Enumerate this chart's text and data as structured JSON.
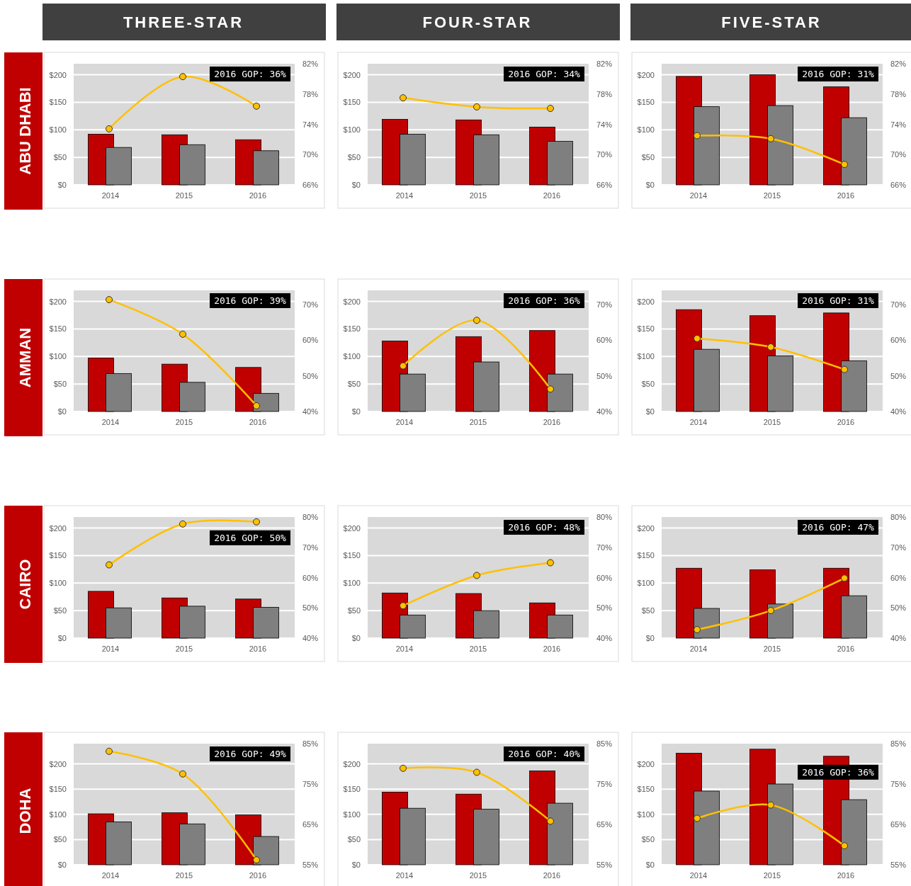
{
  "chart_data": [
    {
      "type": "bar",
      "title": "THREE-STAR",
      "ylabel": "ABU DHABI",
      "categories": [
        "2014",
        "2015",
        "2016"
      ],
      "series": [
        {
          "color": "#c00000",
          "values": [
            92,
            91,
            82
          ]
        },
        {
          "color": "#7f7f7f",
          "values": [
            68,
            73,
            62
          ]
        },
        {
          "type": "line",
          "axis": "y2",
          "color": "#ffc000",
          "values": [
            73.4,
            80.3,
            76.4
          ]
        }
      ],
      "ylim": [
        0,
        220
      ],
      "yticks": [
        {
          "value": 0,
          "label": "$0"
        },
        {
          "value": 50,
          "label": "$50"
        },
        {
          "value": 100,
          "label": "$100"
        },
        {
          "value": 150,
          "label": "$150"
        },
        {
          "value": 200,
          "label": "$200"
        }
      ],
      "y2lim": [
        66,
        82
      ],
      "y2ticks": [
        {
          "value": 66,
          "label": "66%"
        },
        {
          "value": 70,
          "label": "70%"
        },
        {
          "value": 74,
          "label": "74%"
        },
        {
          "value": 78,
          "label": "78%"
        },
        {
          "value": 82,
          "label": "82%"
        }
      ],
      "annotations": [
        "2016 GOP: 36%"
      ],
      "grid": "y",
      "marker": "circle"
    },
    {
      "type": "bar",
      "title": "FOUR-STAR",
      "categories": [
        "2014",
        "2015",
        "2016"
      ],
      "series": [
        {
          "color": "#c00000",
          "values": [
            119,
            118,
            105
          ]
        },
        {
          "color": "#7f7f7f",
          "values": [
            92,
            91,
            79
          ]
        },
        {
          "type": "line",
          "axis": "y2",
          "color": "#ffc000",
          "values": [
            77.5,
            76.3,
            76.1
          ]
        }
      ],
      "ylim": [
        0,
        220
      ],
      "yticks": [
        {
          "value": 0,
          "label": "$0"
        },
        {
          "value": 50,
          "label": "$50"
        },
        {
          "value": 100,
          "label": "$100"
        },
        {
          "value": 150,
          "label": "$150"
        },
        {
          "value": 200,
          "label": "$200"
        }
      ],
      "y2lim": [
        66,
        82
      ],
      "y2ticks": [
        {
          "value": 66,
          "label": "66%"
        },
        {
          "value": 70,
          "label": "70%"
        },
        {
          "value": 74,
          "label": "74%"
        },
        {
          "value": 78,
          "label": "78%"
        },
        {
          "value": 82,
          "label": "82%"
        }
      ],
      "annotations": [
        "2016 GOP: 34%"
      ],
      "grid": "y",
      "marker": "circle"
    },
    {
      "type": "bar",
      "title": "FIVE-STAR",
      "categories": [
        "2014",
        "2015",
        "2016"
      ],
      "series": [
        {
          "color": "#c00000",
          "values": [
            197,
            200,
            178
          ]
        },
        {
          "color": "#7f7f7f",
          "values": [
            142,
            144,
            122
          ]
        },
        {
          "type": "line",
          "axis": "y2",
          "color": "#ffc000",
          "values": [
            72.5,
            72.1,
            68.7
          ]
        }
      ],
      "ylim": [
        0,
        220
      ],
      "yticks": [
        {
          "value": 0,
          "label": "$0"
        },
        {
          "value": 50,
          "label": "$50"
        },
        {
          "value": 100,
          "label": "$100"
        },
        {
          "value": 150,
          "label": "$150"
        },
        {
          "value": 200,
          "label": "$200"
        }
      ],
      "y2lim": [
        66,
        82
      ],
      "y2ticks": [
        {
          "value": 66,
          "label": "66%"
        },
        {
          "value": 70,
          "label": "70%"
        },
        {
          "value": 74,
          "label": "74%"
        },
        {
          "value": 78,
          "label": "78%"
        },
        {
          "value": 82,
          "label": "82%"
        }
      ],
      "annotations": [
        "2016 GOP: 31%"
      ],
      "grid": "y",
      "marker": "circle"
    },
    {
      "type": "bar",
      "ylabel": "AMMAN",
      "categories": [
        "2014",
        "2015",
        "2016"
      ],
      "series": [
        {
          "color": "#c00000",
          "values": [
            97,
            86,
            80
          ]
        },
        {
          "color": "#7f7f7f",
          "values": [
            69,
            53,
            33
          ]
        },
        {
          "type": "line",
          "axis": "y2",
          "color": "#ffc000",
          "values": [
            71.4,
            61.7,
            41.6
          ]
        }
      ],
      "ylim": [
        0,
        220
      ],
      "yticks": [
        {
          "value": 0,
          "label": "$0"
        },
        {
          "value": 50,
          "label": "$50"
        },
        {
          "value": 100,
          "label": "$100"
        },
        {
          "value": 150,
          "label": "$150"
        },
        {
          "value": 200,
          "label": "$200"
        }
      ],
      "y2lim": [
        40,
        74
      ],
      "y2ticks": [
        {
          "value": 40,
          "label": "40%"
        },
        {
          "value": 50,
          "label": "50%"
        },
        {
          "value": 60,
          "label": "60%"
        },
        {
          "value": 70,
          "label": "70%"
        }
      ],
      "annotations": [
        "2016 GOP: 39%"
      ],
      "grid": "y",
      "marker": "circle"
    },
    {
      "type": "bar",
      "categories": [
        "2014",
        "2015",
        "2016"
      ],
      "series": [
        {
          "color": "#c00000",
          "values": [
            128,
            136,
            147
          ]
        },
        {
          "color": "#7f7f7f",
          "values": [
            68,
            90,
            68
          ]
        },
        {
          "type": "line",
          "axis": "y2",
          "color": "#ffc000",
          "values": [
            52.8,
            65.6,
            46.3
          ]
        }
      ],
      "ylim": [
        0,
        220
      ],
      "yticks": [
        {
          "value": 0,
          "label": "$0"
        },
        {
          "value": 50,
          "label": "$50"
        },
        {
          "value": 100,
          "label": "$100"
        },
        {
          "value": 150,
          "label": "$150"
        },
        {
          "value": 200,
          "label": "$200"
        }
      ],
      "y2lim": [
        40,
        74
      ],
      "y2ticks": [
        {
          "value": 40,
          "label": "40%"
        },
        {
          "value": 50,
          "label": "50%"
        },
        {
          "value": 60,
          "label": "60%"
        },
        {
          "value": 70,
          "label": "70%"
        }
      ],
      "annotations": [
        "2016 GOP: 36%"
      ],
      "grid": "y",
      "marker": "circle"
    },
    {
      "type": "bar",
      "categories": [
        "2014",
        "2015",
        "2016"
      ],
      "series": [
        {
          "color": "#c00000",
          "values": [
            185,
            174,
            179
          ]
        },
        {
          "color": "#7f7f7f",
          "values": [
            113,
            101,
            92
          ]
        },
        {
          "type": "line",
          "axis": "y2",
          "color": "#ffc000",
          "values": [
            60.5,
            58.1,
            51.8
          ]
        }
      ],
      "ylim": [
        0,
        220
      ],
      "yticks": [
        {
          "value": 0,
          "label": "$0"
        },
        {
          "value": 50,
          "label": "$50"
        },
        {
          "value": 100,
          "label": "$100"
        },
        {
          "value": 150,
          "label": "$150"
        },
        {
          "value": 200,
          "label": "$200"
        }
      ],
      "y2lim": [
        40,
        74
      ],
      "y2ticks": [
        {
          "value": 40,
          "label": "40%"
        },
        {
          "value": 50,
          "label": "50%"
        },
        {
          "value": 60,
          "label": "60%"
        },
        {
          "value": 70,
          "label": "70%"
        }
      ],
      "annotations": [
        "2016 GOP: 31%"
      ],
      "grid": "y",
      "marker": "circle"
    },
    {
      "type": "bar",
      "ylabel": "CAIRO",
      "categories": [
        "2014",
        "2015",
        "2016"
      ],
      "series": [
        {
          "color": "#c00000",
          "values": [
            85,
            73,
            71
          ]
        },
        {
          "color": "#7f7f7f",
          "values": [
            55,
            58,
            56
          ]
        },
        {
          "type": "line",
          "axis": "y2",
          "color": "#ffc000",
          "values": [
            64.2,
            77.7,
            78.4
          ]
        }
      ],
      "ylim": [
        0,
        220
      ],
      "yticks": [
        {
          "value": 0,
          "label": "$0"
        },
        {
          "value": 50,
          "label": "$50"
        },
        {
          "value": 100,
          "label": "$100"
        },
        {
          "value": 150,
          "label": "$150"
        },
        {
          "value": 200,
          "label": "$200"
        }
      ],
      "y2lim": [
        40,
        80
      ],
      "y2ticks": [
        {
          "value": 40,
          "label": "40%"
        },
        {
          "value": 50,
          "label": "50%"
        },
        {
          "value": 60,
          "label": "60%"
        },
        {
          "value": 70,
          "label": "70%"
        },
        {
          "value": 80,
          "label": "80%"
        }
      ],
      "annotations": [
        "2016 GOP: 50%"
      ],
      "grid": "y",
      "marker": "circle"
    },
    {
      "type": "bar",
      "categories": [
        "2014",
        "2015",
        "2016"
      ],
      "series": [
        {
          "color": "#c00000",
          "values": [
            82,
            81,
            64
          ]
        },
        {
          "color": "#7f7f7f",
          "values": [
            42,
            50,
            42
          ]
        },
        {
          "type": "line",
          "axis": "y2",
          "color": "#ffc000",
          "values": [
            50.7,
            60.7,
            64.9
          ]
        }
      ],
      "ylim": [
        0,
        220
      ],
      "yticks": [
        {
          "value": 0,
          "label": "$0"
        },
        {
          "value": 50,
          "label": "$50"
        },
        {
          "value": 100,
          "label": "$100"
        },
        {
          "value": 150,
          "label": "$150"
        },
        {
          "value": 200,
          "label": "$200"
        }
      ],
      "y2lim": [
        40,
        80
      ],
      "y2ticks": [
        {
          "value": 40,
          "label": "40%"
        },
        {
          "value": 50,
          "label": "50%"
        },
        {
          "value": 60,
          "label": "60%"
        },
        {
          "value": 70,
          "label": "70%"
        },
        {
          "value": 80,
          "label": "80%"
        }
      ],
      "annotations": [
        "2016 GOP: 48%"
      ],
      "grid": "y",
      "marker": "circle"
    },
    {
      "type": "bar",
      "categories": [
        "2014",
        "2015",
        "2016"
      ],
      "series": [
        {
          "color": "#c00000",
          "values": [
            127,
            124,
            127
          ]
        },
        {
          "color": "#7f7f7f",
          "values": [
            54,
            62,
            77
          ]
        },
        {
          "type": "line",
          "axis": "y2",
          "color": "#ffc000",
          "values": [
            42.8,
            49.1,
            59.8
          ]
        }
      ],
      "ylim": [
        0,
        220
      ],
      "yticks": [
        {
          "value": 0,
          "label": "$0"
        },
        {
          "value": 50,
          "label": "$50"
        },
        {
          "value": 100,
          "label": "$100"
        },
        {
          "value": 150,
          "label": "$150"
        },
        {
          "value": 200,
          "label": "$200"
        }
      ],
      "y2lim": [
        40,
        80
      ],
      "y2ticks": [
        {
          "value": 40,
          "label": "40%"
        },
        {
          "value": 50,
          "label": "50%"
        },
        {
          "value": 60,
          "label": "60%"
        },
        {
          "value": 70,
          "label": "70%"
        },
        {
          "value": 80,
          "label": "80%"
        }
      ],
      "annotations": [
        "2016 GOP: 47%"
      ],
      "grid": "y",
      "marker": "circle"
    },
    {
      "type": "bar",
      "ylabel": "DOHA",
      "categories": [
        "2014",
        "2015",
        "2016"
      ],
      "series": [
        {
          "color": "#c00000",
          "values": [
            101,
            103,
            99
          ]
        },
        {
          "color": "#7f7f7f",
          "values": [
            85,
            81,
            56
          ]
        },
        {
          "type": "line",
          "axis": "y2",
          "color": "#ffc000",
          "values": [
            83.1,
            77.5,
            56.2
          ]
        }
      ],
      "ylim": [
        0,
        240
      ],
      "yticks": [
        {
          "value": 0,
          "label": "$0"
        },
        {
          "value": 50,
          "label": "$50"
        },
        {
          "value": 100,
          "label": "$100"
        },
        {
          "value": 150,
          "label": "$150"
        },
        {
          "value": 200,
          "label": "$200"
        }
      ],
      "y2lim": [
        55,
        85
      ],
      "y2ticks": [
        {
          "value": 55,
          "label": "55%"
        },
        {
          "value": 65,
          "label": "65%"
        },
        {
          "value": 75,
          "label": "75%"
        },
        {
          "value": 85,
          "label": "85%"
        }
      ],
      "annotations": [
        "2016 GOP: 49%"
      ],
      "grid": "y",
      "marker": "circle"
    },
    {
      "type": "bar",
      "categories": [
        "2014",
        "2015",
        "2016"
      ],
      "series": [
        {
          "color": "#c00000",
          "values": [
            144,
            140,
            186
          ]
        },
        {
          "color": "#7f7f7f",
          "values": [
            112,
            110,
            122
          ]
        },
        {
          "type": "line",
          "axis": "y2",
          "color": "#ffc000",
          "values": [
            78.9,
            77.9,
            65.8
          ]
        }
      ],
      "ylim": [
        0,
        240
      ],
      "yticks": [
        {
          "value": 0,
          "label": "$0"
        },
        {
          "value": 50,
          "label": "$50"
        },
        {
          "value": 100,
          "label": "$100"
        },
        {
          "value": 150,
          "label": "$150"
        },
        {
          "value": 200,
          "label": "$200"
        }
      ],
      "y2lim": [
        55,
        85
      ],
      "y2ticks": [
        {
          "value": 55,
          "label": "55%"
        },
        {
          "value": 65,
          "label": "65%"
        },
        {
          "value": 75,
          "label": "75%"
        },
        {
          "value": 85,
          "label": "85%"
        }
      ],
      "annotations": [
        "2016 GOP: 40%"
      ],
      "grid": "y",
      "marker": "circle"
    },
    {
      "type": "bar",
      "categories": [
        "2014",
        "2015",
        "2016"
      ],
      "series": [
        {
          "color": "#c00000",
          "values": [
            221,
            229,
            215
          ]
        },
        {
          "color": "#7f7f7f",
          "values": [
            146,
            160,
            129
          ]
        },
        {
          "type": "line",
          "axis": "y2",
          "color": "#ffc000",
          "values": [
            66.5,
            69.8,
            59.7
          ]
        }
      ],
      "ylim": [
        0,
        240
      ],
      "yticks": [
        {
          "value": 0,
          "label": "$0"
        },
        {
          "value": 50,
          "label": "$50"
        },
        {
          "value": 100,
          "label": "$100"
        },
        {
          "value": 150,
          "label": "$150"
        },
        {
          "value": 200,
          "label": "$200"
        }
      ],
      "y2lim": [
        55,
        85
      ],
      "y2ticks": [
        {
          "value": 55,
          "label": "55%"
        },
        {
          "value": 65,
          "label": "65%"
        },
        {
          "value": 75,
          "label": "75%"
        },
        {
          "value": 85,
          "label": "85%"
        }
      ],
      "annotations": [
        "2016 GOP: 36%"
      ],
      "grid": "y",
      "marker": "circle"
    }
  ]
}
